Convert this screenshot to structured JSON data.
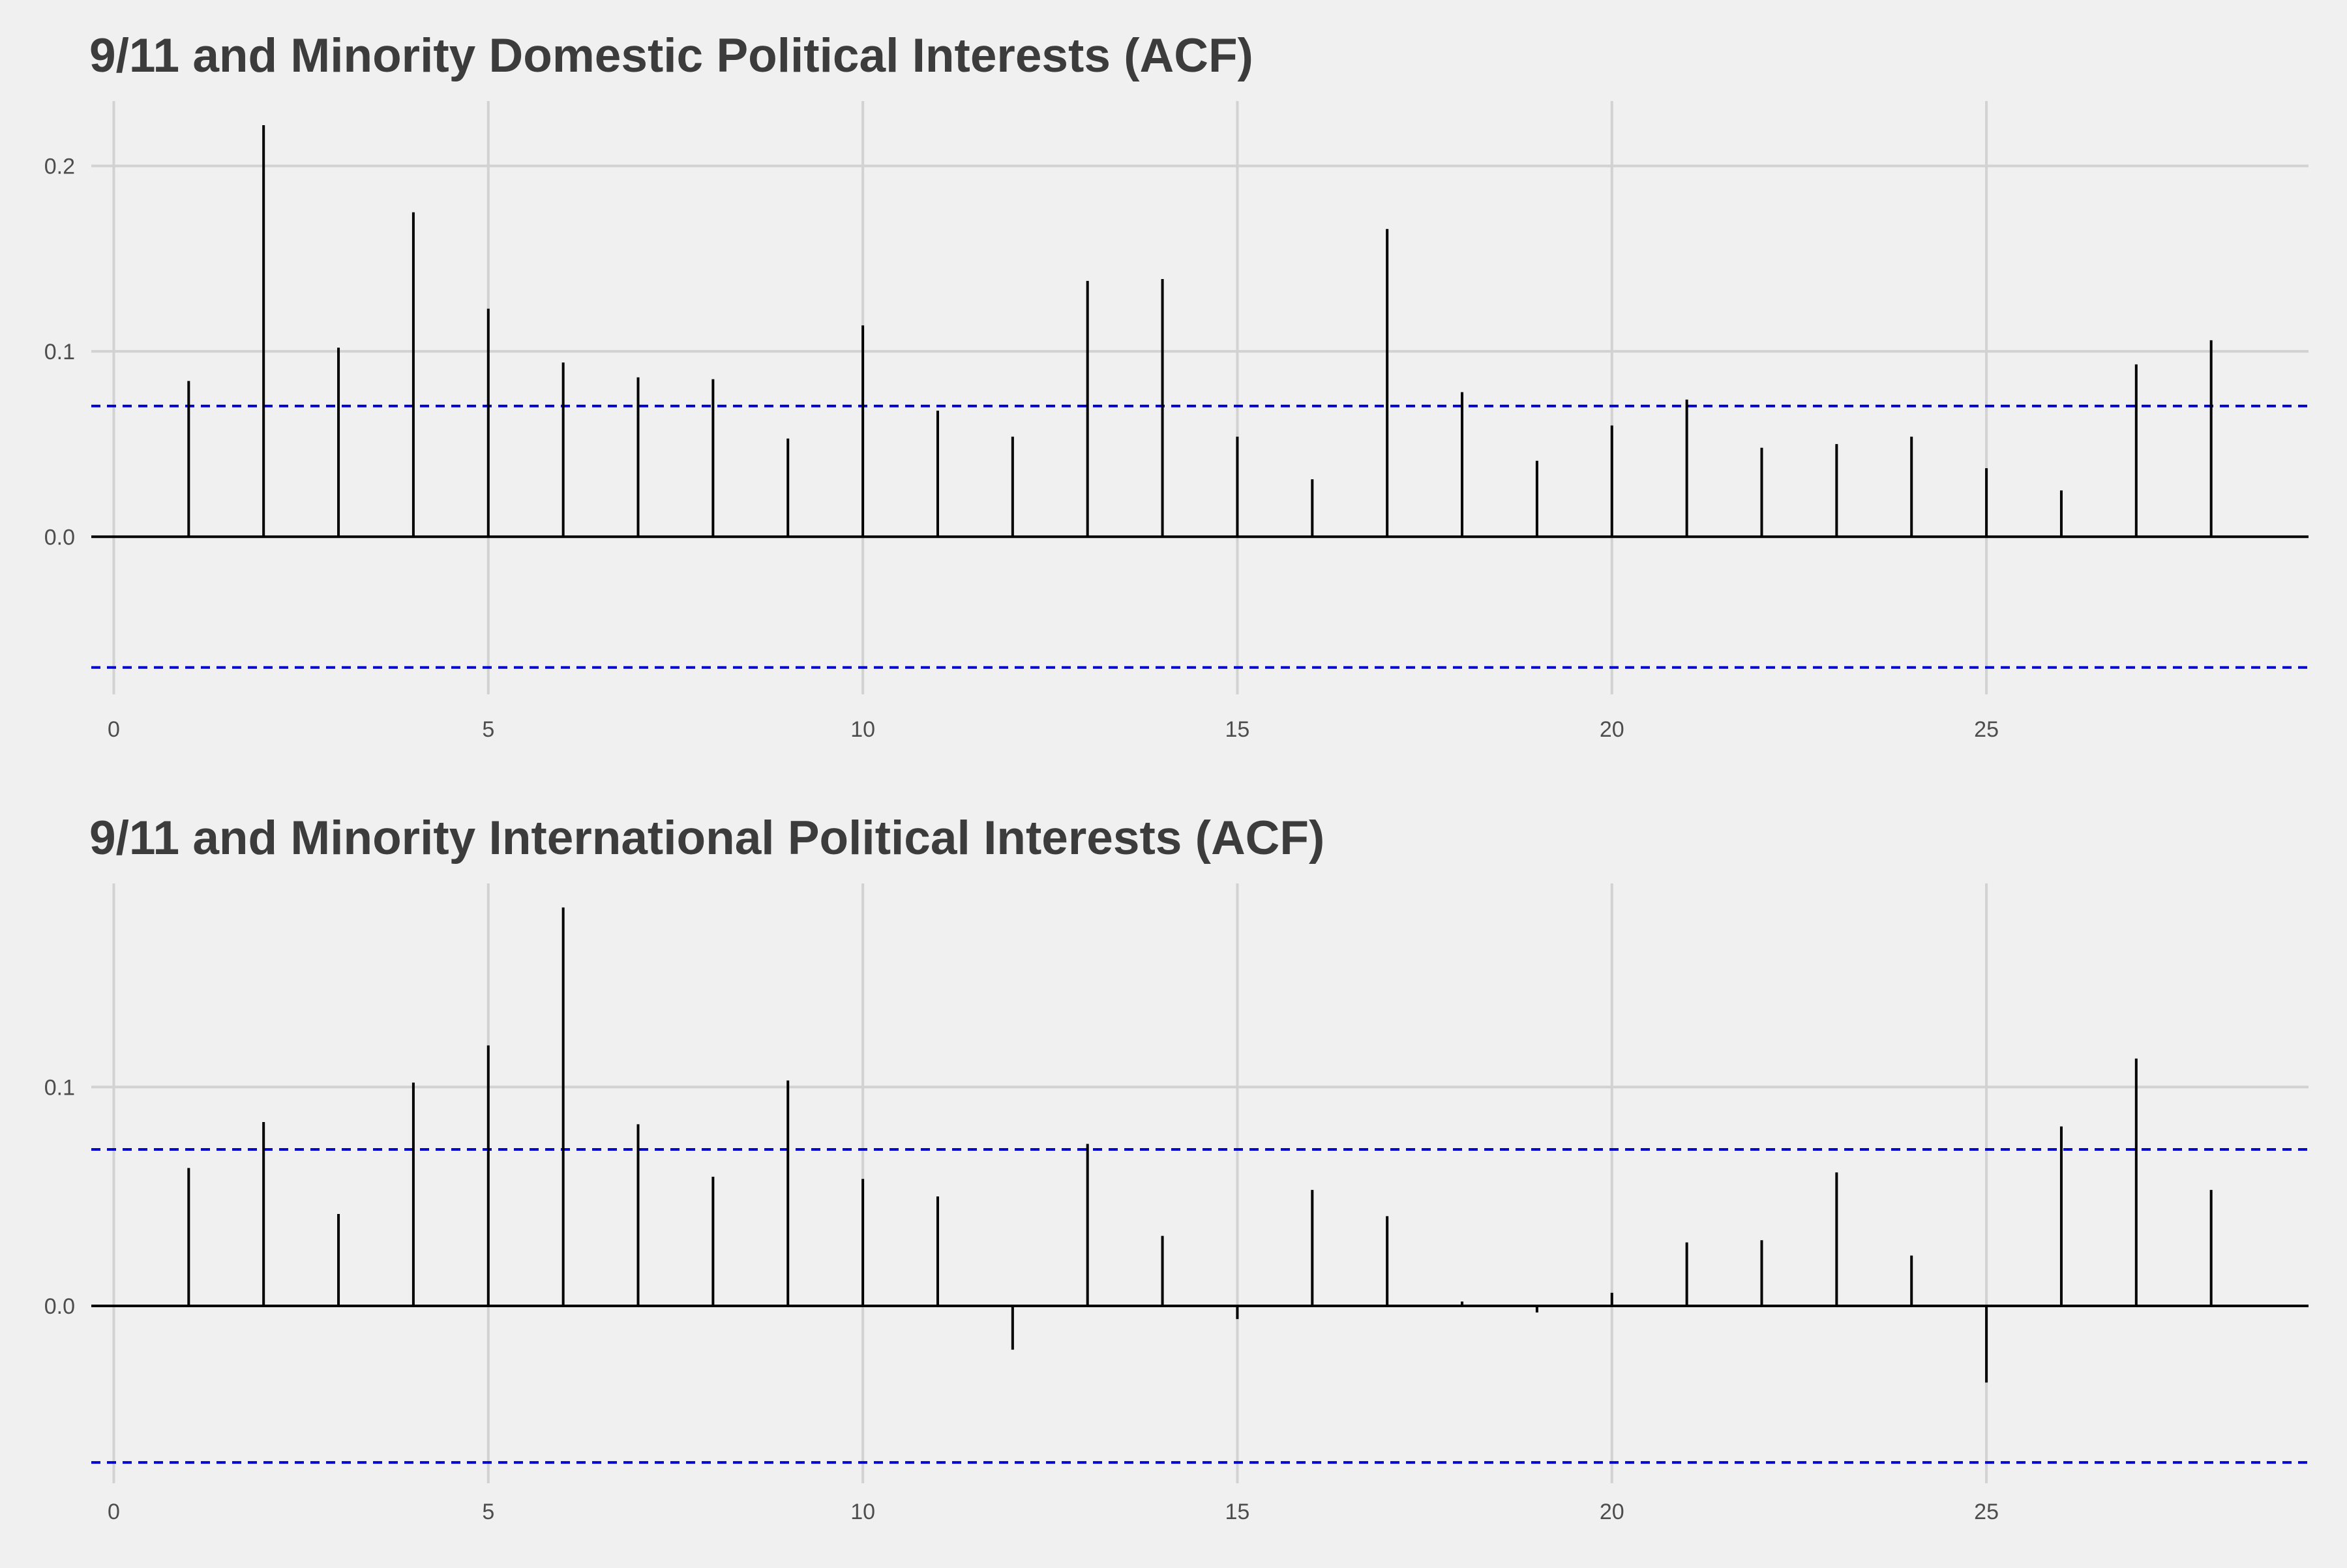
{
  "chart_data": [
    {
      "type": "bar",
      "title": "9/11 and Minority Domestic Political Interests (ACF)",
      "xlabel": "",
      "ylabel": "",
      "x_ticks": [
        0,
        5,
        10,
        15,
        20,
        25
      ],
      "y_ticks": [
        0.0,
        0.1,
        0.2
      ],
      "y_tick_labels": [
        "0.0",
        "0.1",
        "0.2"
      ],
      "xlim": [
        -0.3,
        29.3
      ],
      "ylim": [
        -0.085,
        0.235
      ],
      "confidence_bound": 0.0705,
      "lags": [
        1,
        2,
        3,
        4,
        5,
        6,
        7,
        8,
        9,
        10,
        11,
        12,
        13,
        14,
        15,
        16,
        17,
        18,
        19,
        20,
        21,
        22,
        23,
        24,
        25,
        26,
        27,
        28
      ],
      "values": [
        0.084,
        0.222,
        0.102,
        0.175,
        0.123,
        0.094,
        0.086,
        0.085,
        0.053,
        0.114,
        0.068,
        0.054,
        0.138,
        0.139,
        0.054,
        0.031,
        0.166,
        0.078,
        0.041,
        0.06,
        0.074,
        0.048,
        0.05,
        0.054,
        0.037,
        0.025,
        0.093,
        0.106
      ],
      "grid": true,
      "colors": {
        "bars": "#000000",
        "confidence": "#0000cc",
        "grid": "#d2d2d2",
        "background": "#f0f0f0"
      }
    },
    {
      "type": "bar",
      "title": "9/11 and Minority International Political Interests (ACF)",
      "xlabel": "",
      "ylabel": "",
      "x_ticks": [
        0,
        5,
        10,
        15,
        20,
        25
      ],
      "y_ticks": [
        0.0,
        0.1
      ],
      "y_tick_labels": [
        "0.0",
        "0.1"
      ],
      "xlim": [
        -0.3,
        29.3
      ],
      "ylim": [
        -0.081,
        0.193
      ],
      "confidence_bound": 0.0715,
      "lags": [
        1,
        2,
        3,
        4,
        5,
        6,
        7,
        8,
        9,
        10,
        11,
        12,
        13,
        14,
        15,
        16,
        17,
        18,
        19,
        20,
        21,
        22,
        23,
        24,
        25,
        26,
        27,
        28
      ],
      "values": [
        0.063,
        0.084,
        0.042,
        0.102,
        0.119,
        0.182,
        0.083,
        0.059,
        0.103,
        0.058,
        0.05,
        -0.02,
        0.074,
        0.032,
        -0.006,
        0.053,
        0.041,
        0.002,
        -0.003,
        0.006,
        0.029,
        0.03,
        0.061,
        0.023,
        -0.035,
        0.082,
        0.113,
        0.053
      ],
      "grid": true,
      "colors": {
        "bars": "#000000",
        "confidence": "#0000cc",
        "grid": "#d2d2d2",
        "background": "#f0f0f0"
      }
    }
  ]
}
